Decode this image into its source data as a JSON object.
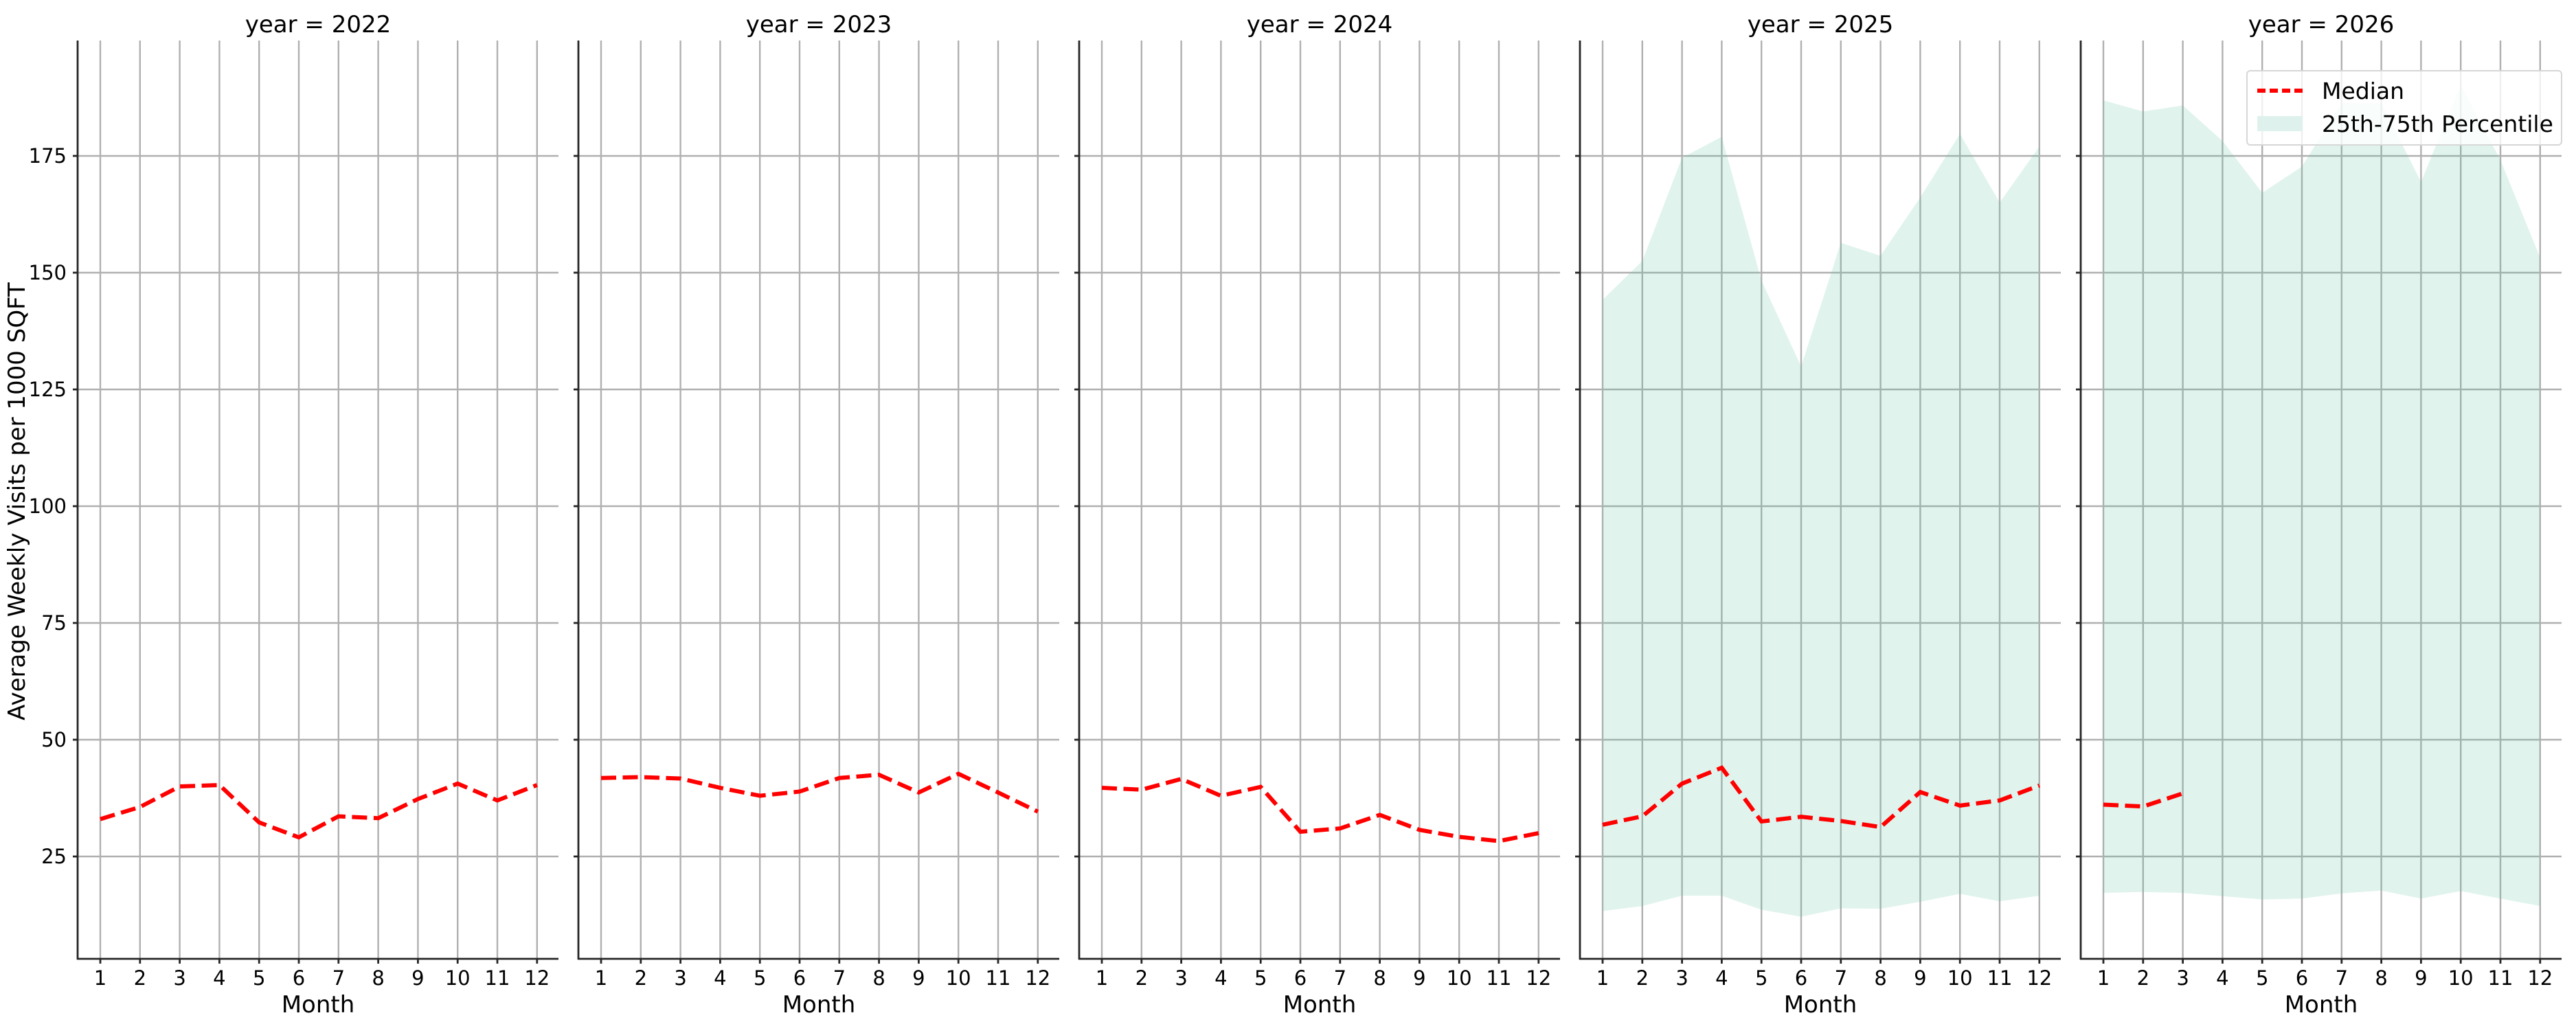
{
  "figure": {
    "ylabel": "Average Weekly Visits per 1000 SQFT",
    "xlabel": "Month",
    "legend": {
      "median_label": "Median",
      "band_label": "25th-75th Percentile"
    },
    "colors": {
      "median": "#ff0000",
      "band": "#dff1ed",
      "grid": "#b0b0b0",
      "axis": "#262626"
    }
  },
  "chart_data": {
    "type": "line",
    "title": "",
    "facet_by": "year",
    "xlabel": "Month",
    "ylabel": "Average Weekly Visits per 1000 SQFT",
    "x": [
      1,
      2,
      3,
      4,
      5,
      6,
      7,
      8,
      9,
      10,
      11,
      12
    ],
    "x_tick_labels": [
      "1",
      "2",
      "3",
      "4",
      "5",
      "6",
      "7",
      "8",
      "9",
      "10",
      "11",
      "12"
    ],
    "y_ticks": [
      25,
      50,
      75,
      100,
      125,
      150,
      175
    ],
    "ylim": [
      3.1,
      199.7
    ],
    "grid": true,
    "legend_position": "upper right (last panel)",
    "panels": [
      {
        "title": "year = 2022",
        "median": [
          33.0,
          35.6,
          40.0,
          40.3,
          32.3,
          29.1,
          33.6,
          33.2,
          37.3,
          40.6,
          37.0,
          40.3
        ],
        "p25": null,
        "p75": null
      },
      {
        "title": "year = 2023",
        "median": [
          41.8,
          42.0,
          41.7,
          39.7,
          38.0,
          38.9,
          41.8,
          42.5,
          38.7,
          42.7,
          38.7,
          34.6
        ],
        "p25": null,
        "p75": null
      },
      {
        "title": "year = 2024",
        "median": [
          39.7,
          39.3,
          41.6,
          38.0,
          39.9,
          30.3,
          31.0,
          33.9,
          30.7,
          29.2,
          28.3,
          30.0
        ],
        "p25": null,
        "p75": null
      },
      {
        "title": "year = 2025",
        "median": [
          31.8,
          33.6,
          40.6,
          44.0,
          32.5,
          33.5,
          32.6,
          31.3,
          38.8,
          35.9,
          37.0,
          40.2
        ],
        "p25": [
          13.3,
          14.4,
          16.6,
          16.6,
          13.6,
          12.1,
          13.9,
          13.8,
          15.3,
          17.0,
          15.4,
          16.6
        ],
        "p75": [
          144.2,
          152.5,
          174.6,
          179.1,
          148.3,
          129.9,
          156.4,
          153.6,
          166.1,
          179.7,
          165.0,
          177.0
        ]
      },
      {
        "title": "year = 2026",
        "median": [
          36.1,
          35.7,
          38.5,
          null,
          null,
          null,
          null,
          null,
          null,
          null,
          null,
          null
        ],
        "p25": [
          17.2,
          17.4,
          17.2,
          16.5,
          15.8,
          16.0,
          17.1,
          17.7,
          16.0,
          17.6,
          16.0,
          14.4
        ],
        "p75": [
          186.9,
          184.5,
          185.8,
          178.2,
          167.1,
          172.7,
          186.3,
          186.3,
          169.4,
          190.2,
          174.1,
          153.2
        ]
      }
    ],
    "series": [
      {
        "name": "Median",
        "style": "red dashed line"
      },
      {
        "name": "25th-75th Percentile",
        "style": "light teal filled band"
      }
    ]
  }
}
